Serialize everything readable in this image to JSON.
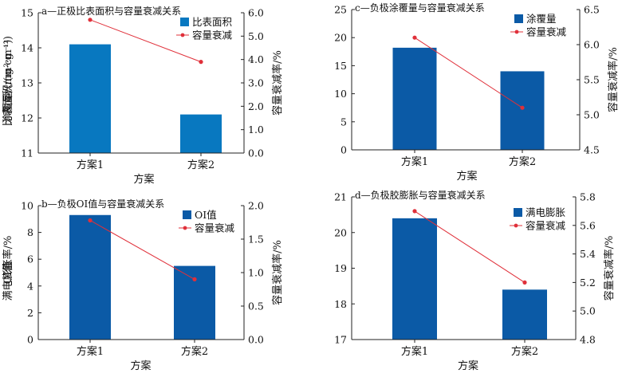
{
  "chart_data": [
    {
      "type": "bar",
      "title": "a—正极比表面积与容量衰减关系",
      "xlabel": "方案",
      "ylabel": "比表面积/(m²·g⁻¹)",
      "y2label": "容量衰减率/%",
      "categories": [
        "方案1",
        "方案2"
      ],
      "ylim": [
        11,
        15
      ],
      "y2lim": [
        0,
        6
      ],
      "yticks": [
        "11",
        "12",
        "13",
        "14",
        "15"
      ],
      "y2ticks": [
        "0.0",
        "1.0",
        "2.0",
        "3.0",
        "4.0",
        "5.0",
        "6.0"
      ],
      "series": [
        {
          "name": "比表面积",
          "kind": "bar",
          "axis": "left",
          "values": [
            14.1,
            12.1
          ]
        },
        {
          "name": "容量衰减",
          "kind": "line",
          "axis": "right",
          "values": [
            5.7,
            3.9
          ]
        }
      ],
      "bar_color": "#0878c0",
      "line_color": "#e0303a",
      "legend": "top-right",
      "grid": false
    },
    {
      "type": "bar",
      "title": "c—负极涂覆量与容量衰减关系",
      "xlabel": "方案",
      "ylabel": "涂覆量/(mg·cm⁻²)",
      "y2label": "容量衰减率/%",
      "categories": [
        "方案1",
        "方案2"
      ],
      "ylim": [
        0,
        25
      ],
      "y2lim": [
        4.5,
        6.5
      ],
      "yticks": [
        "0",
        "5",
        "10",
        "15",
        "20",
        "25"
      ],
      "y2ticks": [
        "4.5",
        "5.0",
        "5.5",
        "6.0",
        "6.5"
      ],
      "series": [
        {
          "name": "涂覆量",
          "kind": "bar",
          "axis": "left",
          "values": [
            18.2,
            14.0
          ]
        },
        {
          "name": "容量衰减",
          "kind": "line",
          "axis": "right",
          "values": [
            6.1,
            5.1
          ]
        }
      ],
      "bar_color": "#0b5aa6",
      "line_color": "#e0303a",
      "legend": "top-right",
      "grid": false
    },
    {
      "type": "bar",
      "title": "b—负极OI值与容量衰减关系",
      "xlabel": "方案",
      "ylabel": "OI值",
      "y2label": "容量衰减率/%",
      "categories": [
        "方案1",
        "方案2"
      ],
      "ylim": [
        0,
        10
      ],
      "y2lim": [
        0,
        2
      ],
      "yticks": [
        "0",
        "2",
        "4",
        "6",
        "8",
        "10"
      ],
      "y2ticks": [
        "0.0",
        "0.5",
        "1.0",
        "1.5",
        "2.0"
      ],
      "series": [
        {
          "name": "OI值",
          "kind": "bar",
          "axis": "left",
          "values": [
            9.3,
            5.5
          ]
        },
        {
          "name": "容量衰减",
          "kind": "line",
          "axis": "right",
          "values": [
            1.78,
            0.9
          ]
        }
      ],
      "bar_color": "#0b5aa6",
      "line_color": "#e0303a",
      "legend": "top-right",
      "grid": false
    },
    {
      "type": "bar",
      "title": "d—负极胶膨胀与容量衰减关系",
      "xlabel": "方案",
      "ylabel": "满电膨胀率/%",
      "y2label": "容量衰减率/%",
      "categories": [
        "方案1",
        "方案2"
      ],
      "ylim": [
        17,
        21
      ],
      "y2lim": [
        4.8,
        5.8
      ],
      "yticks": [
        "17",
        "18",
        "19",
        "20",
        "21"
      ],
      "y2ticks": [
        "4.8",
        "5.0",
        "5.2",
        "5.4",
        "5.6",
        "5.8"
      ],
      "series": [
        {
          "name": "满电膨胀",
          "kind": "bar",
          "axis": "left",
          "values": [
            20.4,
            18.4
          ]
        },
        {
          "name": "容量衰减",
          "kind": "line",
          "axis": "right",
          "values": [
            5.7,
            5.2
          ]
        }
      ],
      "bar_color": "#0b5aa6",
      "line_color": "#e0303a",
      "legend": "top-right",
      "grid": false
    }
  ]
}
